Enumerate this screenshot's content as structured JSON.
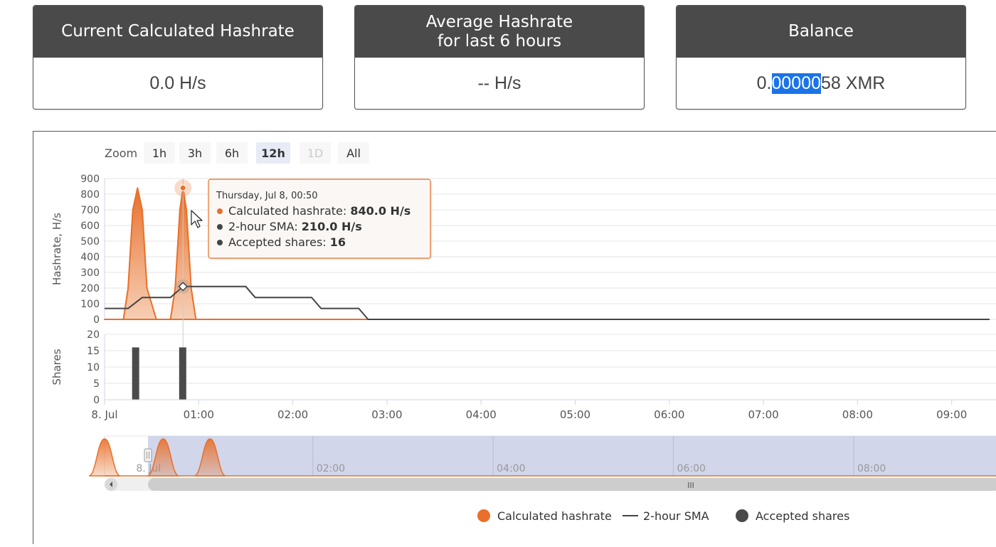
{
  "cards": [
    {
      "title": "Current Calculated Hashrate",
      "value": "0.0 H/s"
    },
    {
      "title": "Average Hashrate\nfor last 6 hours",
      "value": "-- H/s"
    },
    {
      "title": "Balance",
      "value_pre": "0.",
      "value_selected": "00000",
      "value_post": "58 XMR"
    }
  ],
  "zoom": {
    "label": "Zoom",
    "buttons": [
      {
        "label": "1h",
        "state": "normal"
      },
      {
        "label": "3h",
        "state": "normal"
      },
      {
        "label": "6h",
        "state": "normal"
      },
      {
        "label": "12h",
        "state": "active"
      },
      {
        "label": "1D",
        "state": "disabled"
      },
      {
        "label": "All",
        "state": "normal"
      }
    ]
  },
  "tooltip": {
    "date": "Thursday, Jul 8, 00:50",
    "lines": [
      {
        "label": "Calculated hashrate:",
        "value": "840.0 H/s",
        "color": "#e8702a"
      },
      {
        "label": "2-hour SMA:",
        "value": "210.0 H/s",
        "color": "#444444"
      },
      {
        "label": "Accepted shares:",
        "value": "16",
        "color": "#444444"
      }
    ]
  },
  "legend": [
    {
      "label": "Calculated hashrate",
      "symbol": "circle",
      "color": "#e8702a"
    },
    {
      "label": "2-hour SMA",
      "symbol": "line",
      "color": "#444444"
    },
    {
      "label": "Accepted shares",
      "symbol": "circle",
      "color": "#4a4a4a"
    }
  ],
  "navigator": {
    "labels": [
      "8. Jul",
      "02:00",
      "04:00",
      "06:00",
      "08:00"
    ],
    "scroll_grip": "III"
  },
  "chart_data": {
    "type": "line",
    "x_tick_labels": [
      "8. Jul",
      "01:00",
      "02:00",
      "03:00",
      "04:00",
      "05:00",
      "06:00",
      "07:00",
      "08:00",
      "09:00"
    ],
    "x_range_hours": [
      0,
      9.4
    ],
    "panels": [
      {
        "ylabel": "Hashrate, H/s",
        "ylim": [
          0,
          900
        ],
        "yticks": [
          0,
          100,
          200,
          300,
          400,
          500,
          600,
          700,
          800,
          900
        ],
        "series": [
          {
            "name": "Calculated hashrate",
            "type": "area",
            "color": "#e8702a",
            "x": [
              0,
              0.2,
              0.25,
              0.3,
              0.35,
              0.4,
              0.45,
              0.55,
              0.7,
              0.75,
              0.8,
              0.833,
              0.87,
              0.92,
              0.97,
              1.2,
              2.8,
              9.4
            ],
            "y": [
              0,
              0,
              200,
              700,
              840,
              700,
              200,
              0,
              0,
              200,
              700,
              840,
              700,
              200,
              0,
              0,
              0,
              0
            ]
          },
          {
            "name": "2-hour SMA",
            "type": "line",
            "color": "#444444",
            "x": [
              0,
              0.25,
              0.4,
              0.7,
              0.833,
              1.5,
              1.6,
              2.2,
              2.3,
              2.7,
              2.8,
              9.4
            ],
            "y": [
              70,
              70,
              140,
              140,
              210,
              210,
              140,
              140,
              70,
              70,
              0,
              0
            ]
          }
        ]
      },
      {
        "ylabel": "Shares",
        "ylim": [
          0,
          20
        ],
        "yticks": [
          0,
          5,
          10,
          15,
          20
        ],
        "series": [
          {
            "name": "Accepted shares",
            "type": "column",
            "color": "#4a4a4a",
            "x": [
              0.33,
              0.83
            ],
            "y": [
              16,
              16
            ]
          }
        ]
      }
    ]
  }
}
